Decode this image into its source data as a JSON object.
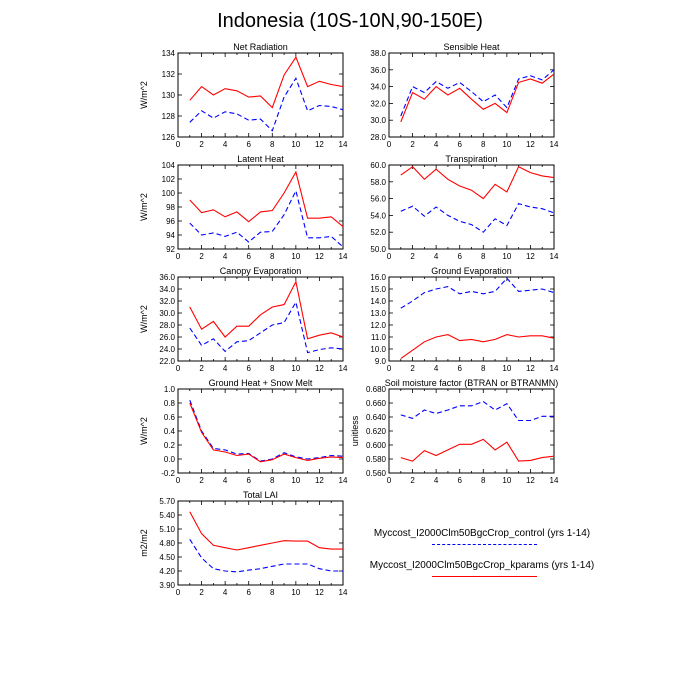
{
  "title": "Indonesia (10S-10N,90-150E)",
  "colors": {
    "control": "#0000ff",
    "kparams": "#ff0000"
  },
  "legend": {
    "control_label": "Myccost_I2000Clm50BgcCrop_control (yrs 1-14)",
    "kparams_label": "Myccost_I2000Clm50BgcCrop_kparams (yrs 1-14)"
  },
  "chart_data": [
    {
      "type": "line",
      "title": "Net Radiation",
      "ylabel": "W/m^2",
      "xlim": [
        0,
        14
      ],
      "xticks": [
        0,
        2,
        4,
        6,
        8,
        10,
        12,
        14
      ],
      "ylim": [
        126,
        134
      ],
      "yticks": [
        126,
        128,
        130,
        132,
        134
      ],
      "ytick_labels": [
        "126",
        "128",
        "130",
        "132",
        "134"
      ],
      "x": [
        1,
        2,
        3,
        4,
        5,
        6,
        7,
        8,
        9,
        10,
        11,
        12,
        13,
        14
      ],
      "series": [
        {
          "name": "Myccost_I2000Clm50BgcCrop_control (yrs 1-14)",
          "style": "dashed",
          "values": [
            127.4,
            128.5,
            127.8,
            128.4,
            128.2,
            127.6,
            127.7,
            126.6,
            129.8,
            131.6,
            128.5,
            129.0,
            128.9,
            128.6
          ]
        },
        {
          "name": "Myccost_I2000Clm50BgcCrop_kparams (yrs 1-14)",
          "style": "solid",
          "values": [
            129.5,
            130.8,
            130.0,
            130.6,
            130.4,
            129.8,
            129.9,
            128.8,
            131.9,
            133.6,
            130.8,
            131.3,
            131.0,
            130.8
          ]
        }
      ]
    },
    {
      "type": "line",
      "title": "Sensible Heat",
      "ylabel": "",
      "xlim": [
        0,
        14
      ],
      "xticks": [
        0,
        2,
        4,
        6,
        8,
        10,
        12,
        14
      ],
      "ylim": [
        28,
        38
      ],
      "yticks": [
        28,
        30,
        32,
        34,
        36,
        38
      ],
      "ytick_labels": [
        "28.0",
        "30.0",
        "32.0",
        "34.0",
        "36.0",
        "38.0"
      ],
      "x": [
        1,
        2,
        3,
        4,
        5,
        6,
        7,
        8,
        9,
        10,
        11,
        12,
        13,
        14
      ],
      "series": [
        {
          "name": "Myccost_I2000Clm50BgcCrop_control (yrs 1-14)",
          "style": "dashed",
          "values": [
            30.5,
            34.0,
            33.3,
            34.6,
            33.8,
            34.5,
            33.4,
            32.2,
            33.0,
            31.5,
            34.9,
            35.3,
            34.8,
            36.0
          ]
        },
        {
          "name": "Myccost_I2000Clm50BgcCrop_kparams (yrs 1-14)",
          "style": "solid",
          "values": [
            29.8,
            33.3,
            32.5,
            34.0,
            33.0,
            33.8,
            32.5,
            31.3,
            32.0,
            30.9,
            34.5,
            34.9,
            34.4,
            35.5
          ]
        }
      ]
    },
    {
      "type": "line",
      "title": "Latent Heat",
      "ylabel": "W/m^2",
      "xlim": [
        0,
        14
      ],
      "xticks": [
        0,
        2,
        4,
        6,
        8,
        10,
        12,
        14
      ],
      "ylim": [
        92,
        104
      ],
      "yticks": [
        92,
        94,
        96,
        98,
        100,
        102,
        104
      ],
      "ytick_labels": [
        "92",
        "94",
        "96",
        "98",
        "100",
        "102",
        "104"
      ],
      "x": [
        1,
        2,
        3,
        4,
        5,
        6,
        7,
        8,
        9,
        10,
        11,
        12,
        13,
        14
      ],
      "series": [
        {
          "name": "Myccost_I2000Clm50BgcCrop_control (yrs 1-14)",
          "style": "dashed",
          "values": [
            95.7,
            94.0,
            94.3,
            93.8,
            94.4,
            93.0,
            94.4,
            94.5,
            96.9,
            100.3,
            93.6,
            93.6,
            93.8,
            92.3
          ]
        },
        {
          "name": "Myccost_I2000Clm50BgcCrop_kparams (yrs 1-14)",
          "style": "solid",
          "values": [
            99.0,
            97.2,
            97.6,
            96.6,
            97.3,
            95.9,
            97.3,
            97.5,
            100.0,
            103.0,
            96.4,
            96.4,
            96.6,
            95.2
          ]
        }
      ]
    },
    {
      "type": "line",
      "title": "Transpiration",
      "ylabel": "",
      "xlim": [
        0,
        14
      ],
      "xticks": [
        0,
        2,
        4,
        6,
        8,
        10,
        12,
        14
      ],
      "ylim": [
        50,
        60
      ],
      "yticks": [
        50,
        52,
        54,
        56,
        58,
        60
      ],
      "ytick_labels": [
        "50.0",
        "52.0",
        "54.0",
        "56.0",
        "58.0",
        "60.0"
      ],
      "x": [
        1,
        2,
        3,
        4,
        5,
        6,
        7,
        8,
        9,
        10,
        11,
        12,
        13,
        14
      ],
      "series": [
        {
          "name": "Myccost_I2000Clm50BgcCrop_control (yrs 1-14)",
          "style": "dashed",
          "values": [
            54.5,
            55.1,
            53.9,
            55.0,
            54.0,
            53.3,
            52.9,
            52.0,
            53.6,
            52.8,
            55.4,
            55.0,
            54.8,
            54.3
          ]
        },
        {
          "name": "Myccost_I2000Clm50BgcCrop_kparams (yrs 1-14)",
          "style": "solid",
          "values": [
            58.8,
            59.8,
            58.3,
            59.5,
            58.3,
            57.5,
            57.0,
            56.0,
            57.7,
            56.8,
            59.8,
            59.1,
            58.7,
            58.5
          ]
        }
      ]
    },
    {
      "type": "line",
      "title": "Canopy Evaporation",
      "ylabel": "W/m^2",
      "xlim": [
        0,
        14
      ],
      "xticks": [
        0,
        2,
        4,
        6,
        8,
        10,
        12,
        14
      ],
      "ylim": [
        22,
        36
      ],
      "yticks": [
        22,
        24,
        26,
        28,
        30,
        32,
        34,
        36
      ],
      "ytick_labels": [
        "22.0",
        "24.0",
        "26.0",
        "28.0",
        "30.0",
        "32.0",
        "34.0",
        "36.0"
      ],
      "x": [
        1,
        2,
        3,
        4,
        5,
        6,
        7,
        8,
        9,
        10,
        11,
        12,
        13,
        14
      ],
      "series": [
        {
          "name": "Myccost_I2000Clm50BgcCrop_control (yrs 1-14)",
          "style": "dashed",
          "values": [
            27.5,
            24.6,
            25.7,
            23.6,
            25.2,
            25.4,
            26.7,
            28.0,
            28.4,
            31.8,
            23.4,
            23.9,
            24.2,
            24.0
          ]
        },
        {
          "name": "Myccost_I2000Clm50BgcCrop_kparams (yrs 1-14)",
          "style": "solid",
          "values": [
            31.0,
            27.3,
            28.6,
            26.0,
            27.8,
            27.8,
            29.7,
            31.0,
            31.4,
            35.2,
            25.7,
            26.3,
            26.7,
            26.0
          ]
        }
      ]
    },
    {
      "type": "line",
      "title": "Ground Evaporation",
      "ylabel": "",
      "xlim": [
        0,
        14
      ],
      "xticks": [
        0,
        2,
        4,
        6,
        8,
        10,
        12,
        14
      ],
      "ylim": [
        9,
        16
      ],
      "yticks": [
        9,
        10,
        11,
        12,
        13,
        14,
        15,
        16
      ],
      "ytick_labels": [
        "9.0",
        "10.0",
        "11.0",
        "12.0",
        "13.0",
        "14.0",
        "15.0",
        "16.0"
      ],
      "x": [
        1,
        2,
        3,
        4,
        5,
        6,
        7,
        8,
        9,
        10,
        11,
        12,
        13,
        14
      ],
      "series": [
        {
          "name": "Myccost_I2000Clm50BgcCrop_control (yrs 1-14)",
          "style": "dashed",
          "values": [
            13.4,
            14.0,
            14.7,
            15.0,
            15.2,
            14.6,
            14.8,
            14.6,
            14.8,
            15.9,
            14.8,
            14.9,
            15.0,
            14.7
          ]
        },
        {
          "name": "Myccost_I2000Clm50BgcCrop_kparams (yrs 1-14)",
          "style": "solid",
          "values": [
            9.2,
            9.9,
            10.6,
            11.0,
            11.2,
            10.7,
            10.8,
            10.6,
            10.8,
            11.2,
            11.0,
            11.1,
            11.1,
            10.9
          ]
        }
      ]
    },
    {
      "type": "line",
      "title": "Ground Heat + Snow Melt",
      "ylabel": "W/m^2",
      "xlim": [
        0,
        14
      ],
      "xticks": [
        0,
        2,
        4,
        6,
        8,
        10,
        12,
        14
      ],
      "ylim": [
        -0.2,
        1.0
      ],
      "yticks": [
        -0.2,
        0.0,
        0.2,
        0.4,
        0.6,
        0.8,
        1.0
      ],
      "ytick_labels": [
        "-0.2",
        "0.0",
        "0.2",
        "0.4",
        "0.6",
        "0.8",
        "1.0"
      ],
      "x": [
        1,
        2,
        3,
        4,
        5,
        6,
        7,
        8,
        9,
        10,
        11,
        12,
        13,
        14
      ],
      "series": [
        {
          "name": "Myccost_I2000Clm50BgcCrop_control (yrs 1-14)",
          "style": "dashed",
          "values": [
            0.84,
            0.4,
            0.15,
            0.13,
            0.07,
            0.08,
            -0.03,
            0.0,
            0.09,
            0.03,
            0.0,
            0.02,
            0.05,
            0.04
          ]
        },
        {
          "name": "Myccost_I2000Clm50BgcCrop_kparams (yrs 1-14)",
          "style": "solid",
          "values": [
            0.8,
            0.38,
            0.13,
            0.1,
            0.05,
            0.07,
            -0.04,
            -0.01,
            0.07,
            0.02,
            -0.02,
            0.01,
            0.03,
            0.02
          ]
        }
      ]
    },
    {
      "type": "line",
      "title": "Soil moisture factor (BTRAN or BTRANMN)",
      "ylabel": "unitless",
      "xlim": [
        0,
        14
      ],
      "xticks": [
        0,
        2,
        4,
        6,
        8,
        10,
        12,
        14
      ],
      "ylim": [
        0.56,
        0.68
      ],
      "yticks": [
        0.56,
        0.58,
        0.6,
        0.62,
        0.64,
        0.66,
        0.68
      ],
      "ytick_labels": [
        "0.560",
        "0.580",
        "0.600",
        "0.620",
        "0.640",
        "0.660",
        "0.680"
      ],
      "x": [
        1,
        2,
        3,
        4,
        5,
        6,
        7,
        8,
        9,
        10,
        11,
        12,
        13,
        14
      ],
      "series": [
        {
          "name": "Myccost_I2000Clm50BgcCrop_control (yrs 1-14)",
          "style": "dashed",
          "values": [
            0.643,
            0.638,
            0.65,
            0.645,
            0.65,
            0.656,
            0.656,
            0.662,
            0.65,
            0.659,
            0.635,
            0.635,
            0.641,
            0.641
          ]
        },
        {
          "name": "Myccost_I2000Clm50BgcCrop_kparams (yrs 1-14)",
          "style": "solid",
          "values": [
            0.582,
            0.577,
            0.592,
            0.585,
            0.593,
            0.601,
            0.601,
            0.608,
            0.593,
            0.604,
            0.577,
            0.578,
            0.582,
            0.584
          ]
        }
      ]
    },
    {
      "type": "line",
      "title": "Total LAI",
      "ylabel": "m2/m2",
      "xlim": [
        0,
        14
      ],
      "xticks": [
        0,
        2,
        4,
        6,
        8,
        10,
        12,
        14
      ],
      "ylim": [
        3.9,
        5.7
      ],
      "yticks": [
        3.9,
        4.2,
        4.5,
        4.8,
        5.1,
        5.4,
        5.7
      ],
      "ytick_labels": [
        "3.90",
        "4.20",
        "4.50",
        "4.80",
        "5.10",
        "5.40",
        "5.70"
      ],
      "x": [
        1,
        2,
        3,
        4,
        5,
        6,
        7,
        8,
        9,
        10,
        11,
        12,
        13,
        14
      ],
      "series": [
        {
          "name": "Myccost_I2000Clm50BgcCrop_control (yrs 1-14)",
          "style": "dashed",
          "values": [
            4.88,
            4.48,
            4.25,
            4.2,
            4.18,
            4.22,
            4.25,
            4.3,
            4.35,
            4.35,
            4.35,
            4.25,
            4.2,
            4.2
          ]
        },
        {
          "name": "Myccost_I2000Clm50BgcCrop_kparams (yrs 1-14)",
          "style": "solid",
          "values": [
            5.47,
            5.0,
            4.75,
            4.7,
            4.65,
            4.7,
            4.75,
            4.8,
            4.85,
            4.84,
            4.84,
            4.7,
            4.67,
            4.67
          ]
        }
      ]
    }
  ]
}
